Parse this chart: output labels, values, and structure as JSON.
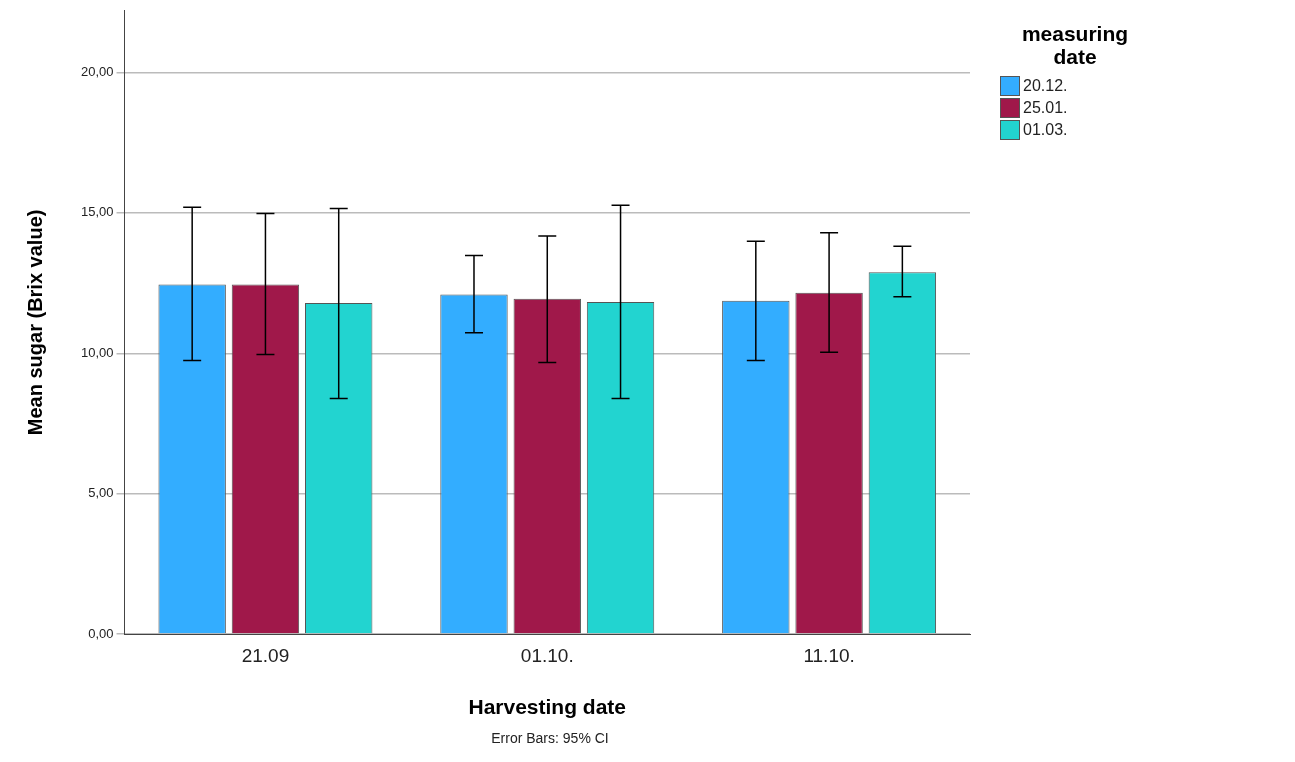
{
  "chart_data": {
    "type": "bar",
    "xlabel": "Harvesting date",
    "ylabel": "Mean sugar (Brix value)",
    "legend_title": "measuring date",
    "categories": [
      "21.09",
      "01.10.",
      "11.10."
    ],
    "series": [
      {
        "name": "20.12.",
        "color": "#33adff",
        "values": [
          12.45,
          12.09,
          11.87
        ],
        "errors": [
          [
            9.74,
            15.2
          ],
          [
            10.73,
            13.48
          ],
          [
            9.74,
            13.99
          ]
        ]
      },
      {
        "name": "25.01.",
        "color": "#a0184a",
        "values": [
          12.45,
          11.94,
          12.16
        ],
        "errors": [
          [
            9.96,
            14.98
          ],
          [
            9.67,
            14.18
          ],
          [
            10.04,
            14.29
          ]
        ]
      },
      {
        "name": "01.03.",
        "color": "#22d4d0",
        "values": [
          11.79,
          11.83,
          12.89
        ],
        "errors": [
          [
            8.39,
            15.16
          ],
          [
            8.39,
            15.27
          ],
          [
            12.01,
            13.81
          ]
        ]
      }
    ],
    "ylim": [
      0,
      22.2
    ],
    "yticks": [
      {
        "value": 0,
        "label": "0,00"
      },
      {
        "value": 5,
        "label": "5,00"
      },
      {
        "value": 10,
        "label": "10,00"
      },
      {
        "value": 15,
        "label": "15,00"
      },
      {
        "value": 20,
        "label": "20,00"
      }
    ],
    "grid": "y",
    "legend": "top right",
    "annotations": [
      "Error Bars: 95% CI"
    ]
  }
}
